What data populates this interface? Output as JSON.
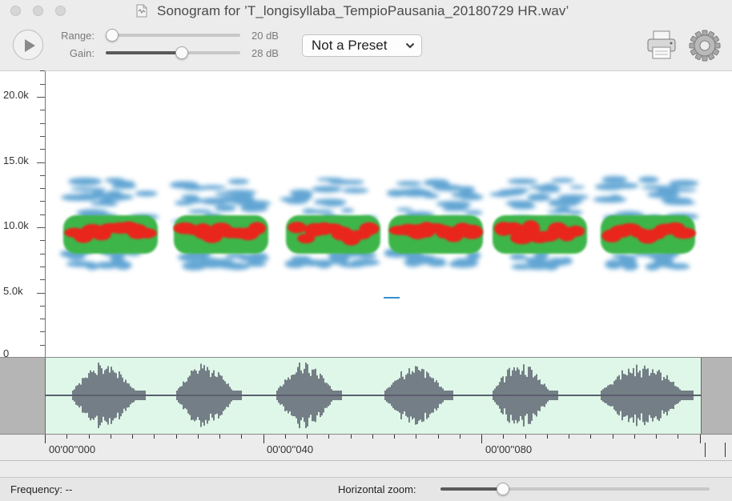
{
  "window": {
    "title": "Sonogram for ’T_longisyllaba_TempioPausania_20180729 HR.wav’"
  },
  "toolbar": {
    "play_icon": "play-icon",
    "range": {
      "label": "Range:",
      "value": "20 dB",
      "level": 0.0
    },
    "gain": {
      "label": "Gain:",
      "value": "28 dB",
      "level": 0.57
    },
    "preset": {
      "selected": "Not a Preset"
    },
    "print_icon": "printer-icon",
    "settings_icon": "gear-icon"
  },
  "sonogram": {
    "y_ticks": [
      "20.0k",
      "15.0k",
      "10.0k",
      "5.0k",
      "0"
    ],
    "colors": {
      "low": "#3a8fc9",
      "mid": "#3cb54a",
      "high": "#e8261e"
    }
  },
  "timeline": {
    "labels": [
      "00'00''000",
      "00'00''040",
      "00'00''080"
    ]
  },
  "status": {
    "frequency": "Frequency: --",
    "horizontal_zoom_label": "Horizontal zoom:",
    "horizontal_zoom_level": 0.23
  }
}
